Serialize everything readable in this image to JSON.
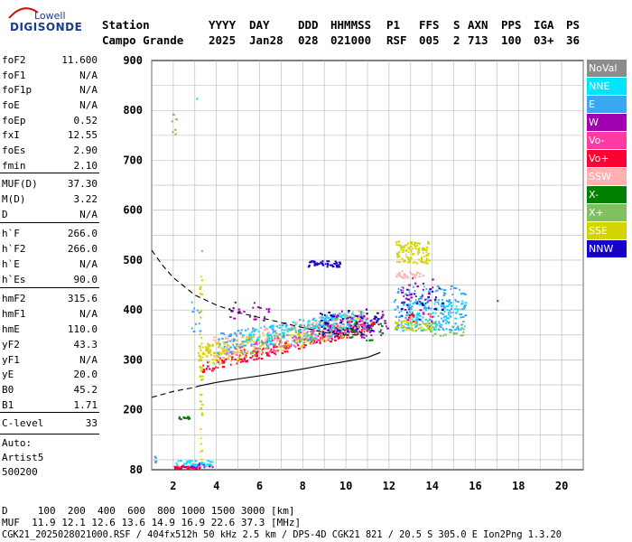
{
  "logo": {
    "line1": "Lowell",
    "line2": "DIGISONDE"
  },
  "header": {
    "labels": [
      "Station",
      "YYYY",
      "DAY",
      "DDD",
      "HHMMSS",
      "P1",
      "FFS",
      "S",
      "AXN",
      "PPS",
      "IGA",
      "PS"
    ],
    "values": [
      "Campo Grande",
      "2025",
      "Jan28",
      "028",
      "021000",
      "RSF",
      "005",
      "2",
      "713",
      "100",
      "03+",
      "36"
    ]
  },
  "params": [
    {
      "label": "foF2",
      "value": "11.600"
    },
    {
      "label": "foF1",
      "value": "N/A"
    },
    {
      "label": "foF1p",
      "value": "N/A"
    },
    {
      "label": "foE",
      "value": "N/A"
    },
    {
      "label": "foEp",
      "value": "0.52"
    },
    {
      "label": "fxI",
      "value": "12.55"
    },
    {
      "label": "foEs",
      "value": "2.90"
    },
    {
      "label": "fmin",
      "value": "2.10"
    },
    {
      "label": "MUF(D)",
      "value": "37.30"
    },
    {
      "label": "M(D)",
      "value": "3.22"
    },
    {
      "label": "D",
      "value": "N/A"
    },
    {
      "label": "h`F",
      "value": "266.0"
    },
    {
      "label": "h`F2",
      "value": "266.0"
    },
    {
      "label": "h`E",
      "value": "N/A"
    },
    {
      "label": "h`Es",
      "value": "90.0"
    },
    {
      "label": "hmF2",
      "value": "315.6"
    },
    {
      "label": "hmF1",
      "value": "N/A"
    },
    {
      "label": "hmE",
      "value": "110.0"
    },
    {
      "label": "yF2",
      "value": "43.3"
    },
    {
      "label": "yF1",
      "value": "N/A"
    },
    {
      "label": "yE",
      "value": "20.0"
    },
    {
      "label": "B0",
      "value": "45.2"
    },
    {
      "label": "B1",
      "value": "1.71"
    },
    {
      "label": "C-level",
      "value": "33"
    }
  ],
  "autoscale": {
    "line1": "Auto:",
    "line2": "Artist5",
    "line3": "500200"
  },
  "legend": [
    {
      "label": "NoVal",
      "color": "#8c8c8c"
    },
    {
      "label": "NNE",
      "color": "#00e5ff"
    },
    {
      "label": "E",
      "color": "#3aa7f0"
    },
    {
      "label": "W",
      "color": "#a000b0"
    },
    {
      "label": "Vo-",
      "color": "#ff3aa0"
    },
    {
      "label": "Vo+",
      "color": "#ff0033"
    },
    {
      "label": "SSW",
      "color": "#ffb0b0"
    },
    {
      "label": "X-",
      "color": "#008000"
    },
    {
      "label": "X+",
      "color": "#80c060"
    },
    {
      "label": "SSE",
      "color": "#d4d400"
    },
    {
      "label": "NNW",
      "color": "#1400c8"
    }
  ],
  "footer": {
    "d_row": "D     100  200  400  600  800 1000 1500 3000 [km]",
    "muf_row": "MUF  11.9 12.1 12.6 13.6 14.9 16.9 22.6 37.3 [MHz]",
    "info": "CGK21_2025028021000.RSF / 404fx512h 50 kHz 2.5 km / DPS-4D CGK21 821 / 20.5 S 305.0 E Ion2Png 1.3.20"
  },
  "chart_data": {
    "type": "scatter",
    "xlim": [
      1,
      21
    ],
    "ylim": [
      80,
      900
    ],
    "x_ticks": [
      2,
      4,
      6,
      8,
      10,
      12,
      14,
      16,
      18,
      20
    ],
    "y_ticks": [
      80,
      200,
      300,
      400,
      500,
      600,
      700,
      800,
      900
    ],
    "grid": true,
    "legend_position": "right",
    "trace_lines": [
      {
        "name": "",
        "style": "dashed",
        "points": [
          [
            1.0,
            520
          ],
          [
            1.5,
            490
          ],
          [
            2.0,
            465
          ],
          [
            3.0,
            430
          ],
          [
            4.0,
            410
          ],
          [
            5.0,
            395
          ],
          [
            6.0,
            385
          ],
          [
            7.0,
            375
          ],
          [
            8.0,
            365
          ],
          [
            9.0,
            355
          ],
          [
            10.0,
            350
          ],
          [
            10.8,
            350
          ]
        ]
      },
      {
        "name": "",
        "style": "dashed",
        "points": [
          [
            1.0,
            225
          ],
          [
            2.0,
            237
          ],
          [
            3.0,
            245
          ],
          [
            3.2,
            248
          ]
        ]
      },
      {
        "name": "",
        "style": "solid",
        "points": [
          [
            3.2,
            248
          ],
          [
            4.0,
            255
          ],
          [
            5.0,
            262
          ],
          [
            6.0,
            268
          ],
          [
            7.0,
            275
          ],
          [
            8.0,
            282
          ],
          [
            9.0,
            290
          ],
          [
            10.0,
            297
          ],
          [
            11.0,
            305
          ],
          [
            11.6,
            315
          ]
        ]
      }
    ],
    "clusters": [
      {
        "color": "#ff0033",
        "x": [
          3.3,
          11.3
        ],
        "y": [
          275,
          295
        ],
        "slope": 85,
        "n": 200
      },
      {
        "color": "#d4d400",
        "x": [
          3.2,
          11.0
        ],
        "y": [
          285,
          330
        ],
        "slope": 70,
        "n": 220
      },
      {
        "color": "#ffb0b0",
        "x": [
          3.5,
          10.8
        ],
        "y": [
          300,
          345
        ],
        "slope": 60,
        "n": 200
      },
      {
        "color": "#3aa7f0",
        "x": [
          4.0,
          11.0
        ],
        "y": [
          310,
          355
        ],
        "slope": 50,
        "n": 180
      },
      {
        "color": "#00e5ff",
        "x": [
          5.0,
          10.5
        ],
        "y": [
          325,
          360
        ],
        "slope": 40,
        "n": 100
      },
      {
        "color": "#ff3aa0",
        "x": [
          4.0,
          11.0
        ],
        "y": [
          290,
          320
        ],
        "slope": 70,
        "n": 90
      },
      {
        "color": "#80c060",
        "x": [
          5.0,
          11.0
        ],
        "y": [
          305,
          340
        ],
        "slope": 60,
        "n": 60
      },
      {
        "color": "#a000b0",
        "x": [
          9.0,
          12.0
        ],
        "y": [
          340,
          390
        ],
        "slope": 10,
        "n": 70
      },
      {
        "color": "#1400c8",
        "x": [
          8.5,
          11.5
        ],
        "y": [
          345,
          395
        ],
        "slope": 10,
        "n": 60
      },
      {
        "color": "#3aa7f0",
        "x": [
          12.2,
          15.5
        ],
        "y": [
          360,
          450
        ],
        "slope": 0,
        "n": 200
      },
      {
        "color": "#00e5ff",
        "x": [
          12.5,
          15.5
        ],
        "y": [
          360,
          420
        ],
        "slope": 0,
        "n": 70
      },
      {
        "color": "#d4d400",
        "x": [
          12.2,
          14.0
        ],
        "y": [
          360,
          380
        ],
        "slope": 0,
        "n": 50
      },
      {
        "color": "#d4d400",
        "x": [
          12.3,
          13.8
        ],
        "y": [
          495,
          540
        ],
        "slope": 0,
        "n": 100
      },
      {
        "color": "#1400c8",
        "x": [
          8.2,
          9.8
        ],
        "y": [
          488,
          500
        ],
        "slope": 0,
        "n": 40
      },
      {
        "color": "#ffb0b0",
        "x": [
          12.3,
          13.6
        ],
        "y": [
          465,
          480
        ],
        "slope": 0,
        "n": 30
      },
      {
        "color": "#a000b0",
        "x": [
          12.5,
          14.0
        ],
        "y": [
          400,
          470
        ],
        "slope": 0,
        "n": 30
      },
      {
        "color": "#1400c8",
        "x": [
          12.5,
          14.5
        ],
        "y": [
          380,
          450
        ],
        "slope": 0,
        "n": 25
      },
      {
        "color": "#a000b0",
        "x": [
          4.5,
          6.5
        ],
        "y": [
          380,
          420
        ],
        "slope": 0,
        "n": 25
      },
      {
        "color": "#d4d400",
        "x": [
          3.1,
          4.5
        ],
        "y": [
          300,
          340
        ],
        "slope": 0,
        "n": 40
      },
      {
        "color": "#d4d400",
        "x": [
          3.2,
          3.3
        ],
        "y": [
          100,
          470
        ],
        "slope": 0,
        "n": 40
      },
      {
        "color": "#ff0033",
        "x": [
          2.0,
          3.2
        ],
        "y": [
          83,
          88
        ],
        "slope": 0,
        "n": 40
      },
      {
        "color": "#a000b0",
        "x": [
          2.4,
          3.8
        ],
        "y": [
          86,
          95
        ],
        "slope": 0,
        "n": 25
      },
      {
        "color": "#00e5ff",
        "x": [
          2.0,
          3.8
        ],
        "y": [
          88,
          100
        ],
        "slope": 0,
        "n": 35
      },
      {
        "color": "#008000",
        "x": [
          2.0,
          3.0
        ],
        "y": [
          182,
          188
        ],
        "slope": 0,
        "n": 12
      },
      {
        "color": "#80c060",
        "x": [
          1.9,
          2.1
        ],
        "y": [
          735,
          795
        ],
        "slope": 0,
        "n": 6
      },
      {
        "color": "#3aa7f0",
        "x": [
          1.1,
          1.2
        ],
        "y": [
          92,
          110
        ],
        "slope": 0,
        "n": 5
      },
      {
        "color": "#3aa7f0",
        "x": [
          2.8,
          3.2
        ],
        "y": [
          350,
          420
        ],
        "slope": 0,
        "n": 10
      },
      {
        "color": "#008000",
        "x": [
          10.2,
          11.8
        ],
        "y": [
          340,
          380
        ],
        "slope": 0,
        "n": 20
      },
      {
        "color": "#ff0033",
        "x": [
          12.8,
          14.0
        ],
        "y": [
          378,
          395
        ],
        "slope": 0,
        "n": 15
      },
      {
        "color": "#80c060",
        "x": [
          13.5,
          15.5
        ],
        "y": [
          350,
          380
        ],
        "slope": 0,
        "n": 25
      }
    ],
    "isolated_points": [
      [
        3.05,
        825,
        "#00e5ff"
      ],
      [
        17.0,
        420,
        "#008000"
      ],
      [
        3.3,
        520,
        "#80c060"
      ]
    ]
  }
}
